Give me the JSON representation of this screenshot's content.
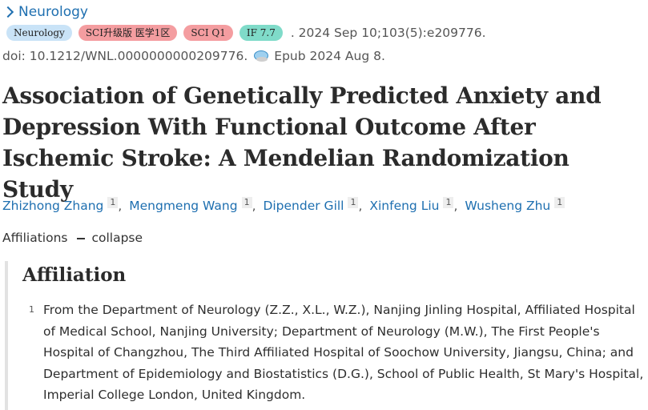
{
  "journal": {
    "name": "Neurology"
  },
  "badges": [
    {
      "label": "Neurology",
      "color": "#c9e3f7"
    },
    {
      "label": "SCI升级版 医学1区",
      "color": "#f49da0"
    },
    {
      "label": "SCI Q1",
      "color": "#f49da0"
    },
    {
      "label": "IF 7.7",
      "color": "#7fdbc9"
    }
  ],
  "citation": ". 2024 Sep 10;103(5):e209776.",
  "doi": "doi: 10.1212/WNL.0000000000209776.",
  "epub": "Epub 2024 Aug 8.",
  "title": "Association of Genetically Predicted Anxiety and Depression With Functional Outcome After Ischemic Stroke: A Mendelian Randomization Study",
  "authors": [
    {
      "name": "Zhizhong Zhang",
      "sup": "1"
    },
    {
      "name": "Mengmeng Wang",
      "sup": "1"
    },
    {
      "name": "Dipender Gill",
      "sup": "1"
    },
    {
      "name": "Xinfeng Liu",
      "sup": "1"
    },
    {
      "name": "Wusheng Zhu",
      "sup": "1"
    }
  ],
  "author_separator": ",",
  "affiliations_toggle": {
    "label": "Affiliations",
    "action": "collapse"
  },
  "affiliation_section": {
    "heading": "Affiliation",
    "items": [
      {
        "number": "1",
        "text": "From the Department of Neurology (Z.Z., X.L., W.Z.), Nanjing Jinling Hospital, Affiliated Hospital of Medical School, Nanjing University; Department of Neurology (M.W.), The First People's Hospital of Changzhou, The Third Affiliated Hospital of Soochow University, Jiangsu, China; and Department of Epidemiology and Biostatistics (D.G.), School of Public Health, St Mary's Hospital, Imperial College London, United Kingdom."
      }
    ]
  },
  "colors": {
    "link": "#1e6fb0",
    "text": "#2b2b2b"
  },
  "icons": {
    "journal_chevron": "chevron-right-icon",
    "epub": "epub-icon"
  }
}
